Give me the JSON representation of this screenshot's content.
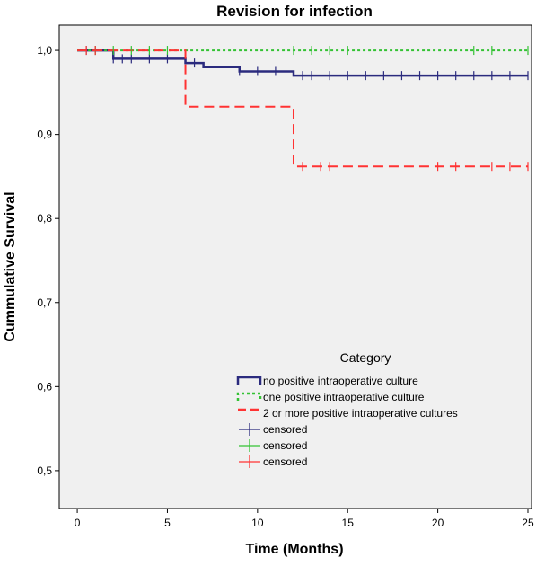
{
  "chart_data": {
    "type": "line",
    "subtype": "kaplan-meier step curve",
    "title": "Revision for infection",
    "xlabel": "Time (Months)",
    "ylabel": "Cummulative Survival",
    "xlim": [
      -1,
      25.2
    ],
    "ylim": [
      0.455,
      1.03
    ],
    "x_ticks": [
      0,
      5,
      10,
      15,
      20,
      25
    ],
    "x_tick_labels": [
      "0",
      "5",
      "10",
      "15",
      "20",
      "25"
    ],
    "y_ticks": [
      0.5,
      0.6,
      0.7,
      0.8,
      0.9,
      1.0
    ],
    "y_tick_labels": [
      "0,5",
      "0,6",
      "0,7",
      "0,8",
      "0,9",
      "1,0"
    ],
    "grid": false,
    "plot_background": "#f0f0f0",
    "legend_title": "Category",
    "legend_position": "lower-center",
    "series": [
      {
        "name": "no positive intraoperative culture",
        "color": "#2b2b7e",
        "style": "solid",
        "steps": [
          [
            0,
            1.0
          ],
          [
            2,
            0.99
          ],
          [
            6,
            0.985
          ],
          [
            7,
            0.98
          ],
          [
            9,
            0.975
          ],
          [
            12,
            0.97
          ],
          [
            25,
            0.97
          ]
        ],
        "censored": [
          0.5,
          1,
          2,
          2.5,
          3,
          4,
          5,
          6.5,
          9,
          10,
          11,
          12.5,
          13,
          14,
          15,
          16,
          17,
          18,
          19,
          20,
          21,
          22,
          23,
          24,
          25
        ]
      },
      {
        "name": "one positive intraoperative culture",
        "color": "#33c233",
        "style": "dotted",
        "steps": [
          [
            0,
            1.0
          ],
          [
            25,
            1.0
          ]
        ],
        "censored": [
          1,
          2,
          3,
          4,
          5,
          12,
          13,
          14,
          15,
          22,
          23,
          25
        ]
      },
      {
        "name": "2 or more positive intraoperative cultures",
        "color": "#ff3333",
        "style": "dashed",
        "steps": [
          [
            0,
            1.0
          ],
          [
            6,
            0.933
          ],
          [
            12,
            0.862
          ],
          [
            25,
            0.862
          ]
        ],
        "censored": [
          0.5,
          1,
          12.5,
          13.5,
          14,
          20,
          21,
          23,
          24,
          25
        ]
      }
    ],
    "legend_entries": [
      {
        "label": "no positive intraoperative culture",
        "color": "#2b2b7e",
        "kind": "step-solid"
      },
      {
        "label": "one positive intraoperative culture",
        "color": "#33c233",
        "kind": "step-dotted"
      },
      {
        "label": "2 or more positive intraoperative cultures",
        "color": "#ff3333",
        "kind": "step-dashed"
      },
      {
        "label": "censored",
        "color": "#2b2b7e",
        "kind": "censor"
      },
      {
        "label": "censored",
        "color": "#33c233",
        "kind": "censor"
      },
      {
        "label": "censored",
        "color": "#ff3333",
        "kind": "censor"
      }
    ]
  }
}
